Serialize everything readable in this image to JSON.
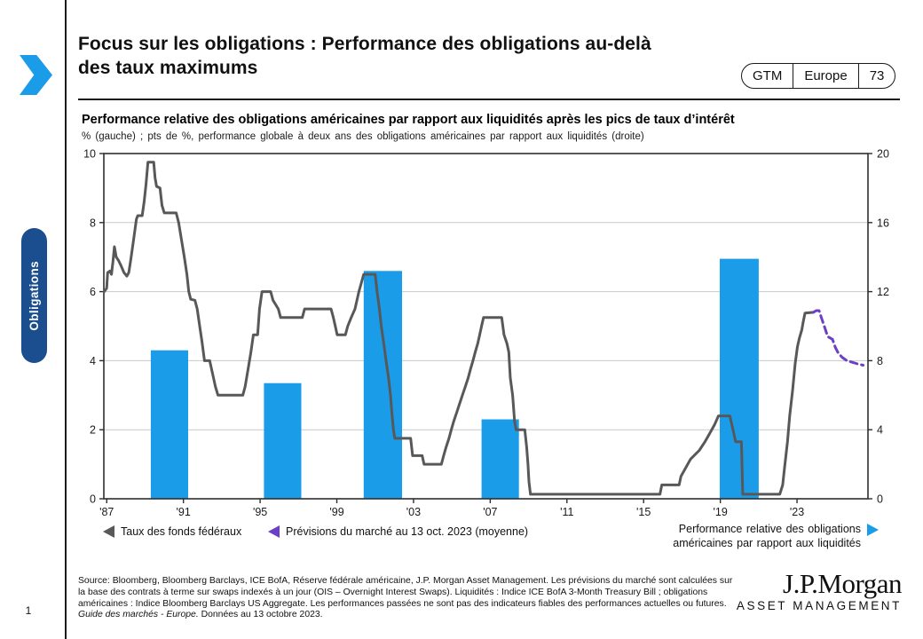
{
  "page": {
    "number": "1"
  },
  "header": {
    "title_line1": "Focus sur les obligations : Performance des obligations au-delà",
    "title_line2": "des taux maximums",
    "gtm_label": "GTM",
    "gtm_region": "Europe",
    "gtm_page": "73"
  },
  "sidebar_tab": {
    "label": "Obligations",
    "color": "#1b4e8e"
  },
  "chart_header": {
    "title": "Performance relative des obligations américaines par rapport aux liquidités après les pics de taux d’intérêt",
    "subtitle": "% (gauche)  ; pts de %, performance globale à deux ans des obligations américaines par rapport aux liquidités (droite)"
  },
  "legend": {
    "fed_funds": {
      "label": "Taux des fonds fédéraux",
      "color": "#58585a"
    },
    "forecast": {
      "label": "Prévisions du marché au 13 oct. 2023 (moyenne)",
      "color": "#6c3fc5"
    },
    "performance": {
      "label_line1": "Performance relative des obligations",
      "label_line2": "américaines par rapport aux liquidités",
      "color": "#1b9ce8"
    }
  },
  "chart_data": {
    "type": "line+bar",
    "title": "Performance relative des obligations américaines par rapport aux liquidités après les pics de taux d’intérêt",
    "left_axis": {
      "label": "% (gauche)",
      "range": [
        0,
        10
      ],
      "ticks": [
        0,
        2,
        4,
        6,
        8,
        10
      ]
    },
    "right_axis": {
      "label": "pts de %, performance globale à deux ans (droite)",
      "range": [
        0,
        20
      ],
      "ticks": [
        0,
        4,
        8,
        12,
        16,
        20
      ]
    },
    "x_axis": {
      "range": [
        1986.85,
        2026.7
      ],
      "tick_years": [
        1987,
        1991,
        1995,
        1999,
        2003,
        2007,
        2011,
        2015,
        2019,
        2023
      ],
      "tick_labels": [
        "'87",
        "'91",
        "'95",
        "'99",
        "'03",
        "'07",
        "'11",
        "'15",
        "'19",
        "'23"
      ]
    },
    "gridline_values_left": [
      2,
      4,
      6,
      8
    ],
    "colors": {
      "grid": "#c9c9c9",
      "frame": "#2e2e2e",
      "tick_text": "#1a1a1a"
    },
    "series": [
      {
        "name": "Taux des fonds fédéraux",
        "type": "line",
        "style": "solid",
        "axis": "left",
        "color": "#58585a",
        "points": [
          [
            1986.87,
            6.0
          ],
          [
            1987.0,
            6.1
          ],
          [
            1987.05,
            6.55
          ],
          [
            1987.17,
            6.6
          ],
          [
            1987.25,
            6.5
          ],
          [
            1987.32,
            6.85
          ],
          [
            1987.4,
            7.3
          ],
          [
            1987.5,
            7.0
          ],
          [
            1987.62,
            6.9
          ],
          [
            1987.75,
            6.75
          ],
          [
            1987.9,
            6.55
          ],
          [
            1988.05,
            6.45
          ],
          [
            1988.15,
            6.55
          ],
          [
            1988.25,
            6.9
          ],
          [
            1988.4,
            7.5
          ],
          [
            1988.55,
            8.1
          ],
          [
            1988.62,
            8.2
          ],
          [
            1988.85,
            8.2
          ],
          [
            1988.95,
            8.6
          ],
          [
            1989.05,
            9.1
          ],
          [
            1989.15,
            9.75
          ],
          [
            1989.45,
            9.75
          ],
          [
            1989.52,
            9.3
          ],
          [
            1989.6,
            9.05
          ],
          [
            1989.78,
            9.0
          ],
          [
            1989.88,
            8.5
          ],
          [
            1990.0,
            8.28
          ],
          [
            1990.62,
            8.28
          ],
          [
            1990.75,
            8.0
          ],
          [
            1990.9,
            7.5
          ],
          [
            1991.05,
            7.0
          ],
          [
            1991.18,
            6.5
          ],
          [
            1991.28,
            6.0
          ],
          [
            1991.38,
            5.78
          ],
          [
            1991.6,
            5.75
          ],
          [
            1991.72,
            5.5
          ],
          [
            1991.85,
            5.0
          ],
          [
            1991.97,
            4.55
          ],
          [
            1992.1,
            4.0
          ],
          [
            1992.37,
            4.0
          ],
          [
            1992.47,
            3.75
          ],
          [
            1992.57,
            3.5
          ],
          [
            1992.67,
            3.25
          ],
          [
            1992.8,
            3.0
          ],
          [
            1994.1,
            3.0
          ],
          [
            1994.22,
            3.25
          ],
          [
            1994.37,
            3.75
          ],
          [
            1994.52,
            4.25
          ],
          [
            1994.65,
            4.75
          ],
          [
            1994.87,
            4.75
          ],
          [
            1994.97,
            5.5
          ],
          [
            1995.1,
            6.0
          ],
          [
            1995.55,
            6.0
          ],
          [
            1995.67,
            5.75
          ],
          [
            1995.95,
            5.5
          ],
          [
            1996.07,
            5.25
          ],
          [
            1997.2,
            5.25
          ],
          [
            1997.32,
            5.5
          ],
          [
            1998.7,
            5.5
          ],
          [
            1998.82,
            5.25
          ],
          [
            1998.92,
            5.0
          ],
          [
            1999.02,
            4.75
          ],
          [
            1999.45,
            4.75
          ],
          [
            1999.57,
            5.0
          ],
          [
            1999.75,
            5.25
          ],
          [
            1999.95,
            5.5
          ],
          [
            2000.15,
            6.0
          ],
          [
            2000.4,
            6.5
          ],
          [
            2001.0,
            6.5
          ],
          [
            2001.1,
            6.0
          ],
          [
            2001.22,
            5.5
          ],
          [
            2001.32,
            5.0
          ],
          [
            2001.45,
            4.5
          ],
          [
            2001.57,
            4.0
          ],
          [
            2001.7,
            3.5
          ],
          [
            2001.8,
            3.0
          ],
          [
            2001.87,
            2.5
          ],
          [
            2001.95,
            2.0
          ],
          [
            2002.02,
            1.75
          ],
          [
            2002.85,
            1.75
          ],
          [
            2002.95,
            1.25
          ],
          [
            2003.45,
            1.25
          ],
          [
            2003.55,
            1.0
          ],
          [
            2004.45,
            1.0
          ],
          [
            2004.57,
            1.25
          ],
          [
            2004.7,
            1.5
          ],
          [
            2004.85,
            1.75
          ],
          [
            2004.97,
            2.0
          ],
          [
            2005.1,
            2.25
          ],
          [
            2005.25,
            2.5
          ],
          [
            2005.4,
            2.75
          ],
          [
            2005.55,
            3.0
          ],
          [
            2005.7,
            3.25
          ],
          [
            2005.85,
            3.5
          ],
          [
            2005.97,
            3.75
          ],
          [
            2006.1,
            4.0
          ],
          [
            2006.22,
            4.25
          ],
          [
            2006.35,
            4.5
          ],
          [
            2006.45,
            4.75
          ],
          [
            2006.55,
            5.0
          ],
          [
            2006.65,
            5.25
          ],
          [
            2007.6,
            5.25
          ],
          [
            2007.72,
            4.75
          ],
          [
            2007.87,
            4.5
          ],
          [
            2007.97,
            4.25
          ],
          [
            2008.05,
            3.5
          ],
          [
            2008.17,
            3.0
          ],
          [
            2008.27,
            2.25
          ],
          [
            2008.35,
            2.0
          ],
          [
            2008.8,
            2.0
          ],
          [
            2008.9,
            1.5
          ],
          [
            2008.97,
            1.0
          ],
          [
            2009.02,
            0.5
          ],
          [
            2009.1,
            0.13
          ],
          [
            2015.85,
            0.13
          ],
          [
            2015.95,
            0.4
          ],
          [
            2016.85,
            0.4
          ],
          [
            2016.95,
            0.65
          ],
          [
            2017.2,
            0.9
          ],
          [
            2017.45,
            1.15
          ],
          [
            2017.9,
            1.4
          ],
          [
            2018.2,
            1.65
          ],
          [
            2018.45,
            1.9
          ],
          [
            2018.7,
            2.15
          ],
          [
            2018.9,
            2.4
          ],
          [
            2019.5,
            2.4
          ],
          [
            2019.6,
            2.15
          ],
          [
            2019.7,
            1.9
          ],
          [
            2019.8,
            1.65
          ],
          [
            2020.1,
            1.65
          ],
          [
            2020.17,
            0.13
          ],
          [
            2022.1,
            0.13
          ],
          [
            2022.25,
            0.4
          ],
          [
            2022.35,
            0.9
          ],
          [
            2022.5,
            1.65
          ],
          [
            2022.62,
            2.4
          ],
          [
            2022.77,
            3.15
          ],
          [
            2022.9,
            3.9
          ],
          [
            2023.02,
            4.4
          ],
          [
            2023.12,
            4.65
          ],
          [
            2023.25,
            4.9
          ],
          [
            2023.33,
            5.15
          ],
          [
            2023.42,
            5.38
          ],
          [
            2023.85,
            5.4
          ]
        ]
      },
      {
        "name": "Prévisions du marché au 13 oct. 2023 (moyenne)",
        "type": "line",
        "style": "dashed",
        "axis": "left",
        "color": "#6c3fc5",
        "points": [
          [
            2023.85,
            5.4
          ],
          [
            2024.0,
            5.45
          ],
          [
            2024.15,
            5.45
          ],
          [
            2024.3,
            5.2
          ],
          [
            2024.45,
            4.95
          ],
          [
            2024.6,
            4.7
          ],
          [
            2024.85,
            4.62
          ],
          [
            2025.0,
            4.38
          ],
          [
            2025.15,
            4.22
          ],
          [
            2025.35,
            4.1
          ],
          [
            2025.6,
            4.0
          ],
          [
            2025.9,
            3.95
          ],
          [
            2026.2,
            3.9
          ],
          [
            2026.45,
            3.87
          ]
        ]
      },
      {
        "name": "Performance relative des obligations américaines par rapport aux liquidités",
        "type": "bar",
        "axis": "right",
        "color": "#1b9ce8",
        "bars": [
          {
            "from": 1989.3,
            "to": 1991.25,
            "value": 8.6
          },
          {
            "from": 1995.2,
            "to": 1997.15,
            "value": 6.7
          },
          {
            "from": 2000.4,
            "to": 2002.4,
            "value": 13.2
          },
          {
            "from": 2006.55,
            "to": 2008.5,
            "value": 4.6
          },
          {
            "from": 2018.97,
            "to": 2021.0,
            "value": 13.9
          }
        ]
      }
    ]
  },
  "footer": {
    "line1": "Source: Bloomberg,  Bloomberg  Barclays, ICE  BofA, Réserve fédérale américaine, J.P.  Morgan  Asset Management. Les prévisions du marché sont calculées sur",
    "line2": "la base des contrats à terme sur swaps indexés à un jour (OIS  –  Overnight Interest  Swaps). Liquidités : Indice  ICE   BofA 3-Month Treasury Bill ; obligations",
    "line3": "américaines : Indice Bloomberg  Barclays US  Aggregate. Les performances passées ne sont pas des indicateurs fiables des performances actuelles ou futures.",
    "line4_italic": "Guide des marchés - Europe.",
    "line4_rest": " Données au 13 octobre 2023."
  },
  "logo": {
    "brand": "J.P.Morgan",
    "sub": "ASSET MANAGEMENT"
  }
}
